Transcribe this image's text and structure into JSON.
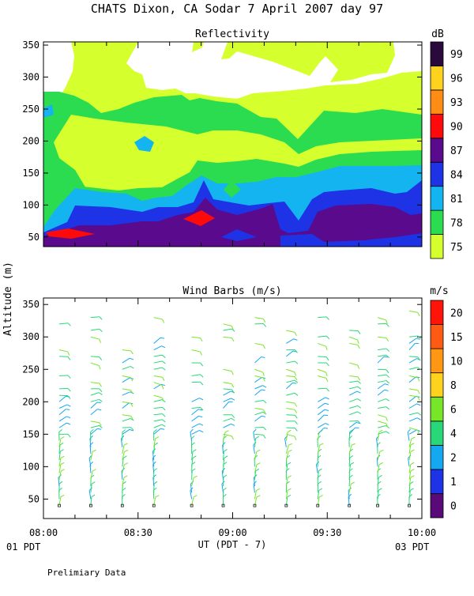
{
  "page": {
    "title": "CHATS Dixon, CA  Sodar    7 April 2007   day  97",
    "shared_ylabel": "Altitude (m)",
    "xlabel": "UT  (PDT - 7)",
    "left_local_time": "01 PDT",
    "right_local_time": "03 PDT",
    "footnote": "Prelimiary Data"
  },
  "chart_data": [
    {
      "type": "heatmap",
      "title": "Reflectivity",
      "ylabel": "Altitude (m)",
      "x_ticks": [
        "08:00",
        "08:30",
        "09:00",
        "09:30",
        "10:00"
      ],
      "y_ticks": [
        50,
        100,
        150,
        200,
        250,
        300,
        350
      ],
      "xlim_minutes_after_0800": [
        0,
        120
      ],
      "ylim": [
        35,
        355
      ],
      "colorbar": {
        "unit": "dB",
        "levels": [
          75,
          78,
          81,
          84,
          87,
          90,
          93,
          96,
          99
        ],
        "colors": [
          "#d6ff2e",
          "#2bdc50",
          "#14b4f0",
          "#1e32e6",
          "#5a0a8c",
          "#ff0a0a",
          "#ff8c14",
          "#ffd21e",
          "#2a0a3c"
        ]
      },
      "legend_labels": [
        "75",
        "78",
        "81",
        "84",
        "87",
        "90",
        "93",
        "96",
        "99"
      ]
    },
    {
      "type": "wind_barbs",
      "title": "Wind Barbs (m/s)",
      "ylabel": "Altitude (m)",
      "x_ticks": [
        "08:00",
        "08:30",
        "09:00",
        "09:30",
        "10:00"
      ],
      "y_ticks": [
        50,
        100,
        150,
        200,
        250,
        300,
        350
      ],
      "xlim_minutes_after_0800": [
        0,
        120
      ],
      "ylim": [
        20,
        360
      ],
      "colorbar": {
        "unit": "m/s",
        "levels": [
          0,
          1,
          2,
          4,
          6,
          8,
          10,
          15,
          20
        ],
        "colors": [
          "#5a0a78",
          "#1e32e6",
          "#14a8f0",
          "#28d878",
          "#78e628",
          "#ffd21e",
          "#ff9614",
          "#ff5a14",
          "#ff140a"
        ]
      },
      "legend_labels": [
        "0",
        "1",
        "2",
        "4",
        "6",
        "8",
        "10",
        "15",
        "20"
      ],
      "profile_times_minutes_after_0800": [
        5,
        15,
        25,
        35,
        47,
        57,
        67,
        77,
        87,
        97,
        106,
        116
      ]
    }
  ]
}
